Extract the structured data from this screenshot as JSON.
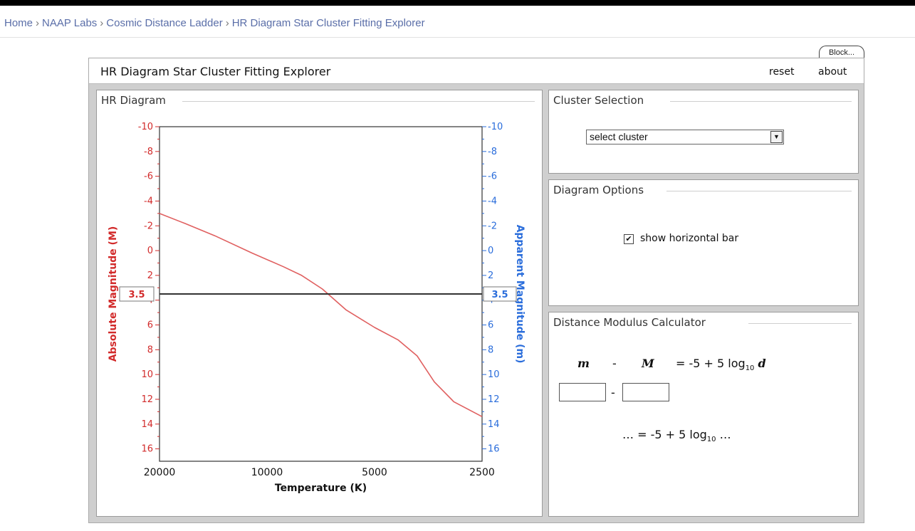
{
  "breadcrumb": [
    {
      "label": "Home"
    },
    {
      "label": "NAAP Labs"
    },
    {
      "label": "Cosmic Distance Ladder"
    },
    {
      "label": "HR Diagram Star Cluster Fitting Explorer"
    }
  ],
  "breadcrumb_separator": "›",
  "block_tab": "Block...",
  "app": {
    "title": "HR Diagram Star Cluster Fitting Explorer",
    "reset_label": "reset",
    "about_label": "about"
  },
  "hr_panel": {
    "title": "HR Diagram"
  },
  "cluster_panel": {
    "title": "Cluster Selection",
    "select_value": "select cluster"
  },
  "options_panel": {
    "title": "Diagram Options",
    "checkbox_label": "show horizontal bar",
    "checked": true
  },
  "dm_panel": {
    "title": "Distance Modulus Calculator",
    "formula": {
      "m": "m",
      "minus": "-",
      "M": "M",
      "rhs": "= -5 + 5 log",
      "sub": "10",
      "d": "d"
    },
    "input_m": "",
    "input_M": "",
    "inputs_minus": "-",
    "result_prefix": "… = -5 + 5 log",
    "result_sub": "10",
    "result_suffix": " …"
  },
  "colors": {
    "absolute_axis": "#d22b2b",
    "apparent_axis": "#2a6ddb",
    "curve": "#e06060",
    "bar": "#333333"
  },
  "chart_data": {
    "type": "line",
    "xlabel": "Temperature (K)",
    "ylabel": "Absolute Magnitude (M)",
    "ylabel_right": "Apparent Magnitude (m)",
    "x_scale": "log",
    "x_reversed": true,
    "xlim": [
      20000,
      2500
    ],
    "x_ticks": [
      20000,
      10000,
      5000,
      2500
    ],
    "ylim": [
      -10,
      17
    ],
    "y_reversed": true,
    "y_ticks": [
      -10,
      -8,
      -6,
      -4,
      -2,
      0,
      2,
      4,
      6,
      8,
      10,
      12,
      14,
      16
    ],
    "y_ticks_right": [
      -10,
      -8,
      -6,
      -4,
      -2,
      0,
      2,
      4,
      6,
      8,
      10,
      12,
      14,
      16
    ],
    "series": [
      {
        "values": [
          {
            "x": 20000,
            "y": -3.0
          },
          {
            "x": 17000,
            "y": -2.2
          },
          {
            "x": 14000,
            "y": -1.2
          },
          {
            "x": 11000,
            "y": 0.2
          },
          {
            "x": 9000,
            "y": 1.3
          },
          {
            "x": 8000,
            "y": 2.0
          },
          {
            "x": 7000,
            "y": 3.1
          },
          {
            "x": 6000,
            "y": 4.8
          },
          {
            "x": 5000,
            "y": 6.2
          },
          {
            "x": 4300,
            "y": 7.2
          },
          {
            "x": 3800,
            "y": 8.5
          },
          {
            "x": 3400,
            "y": 10.6
          },
          {
            "x": 3000,
            "y": 12.2
          },
          {
            "x": 2500,
            "y": 13.4
          }
        ]
      }
    ],
    "horizontal_bar": {
      "left_value": "3.5",
      "right_value": "3.5",
      "y": 3.5
    },
    "grid": false
  }
}
